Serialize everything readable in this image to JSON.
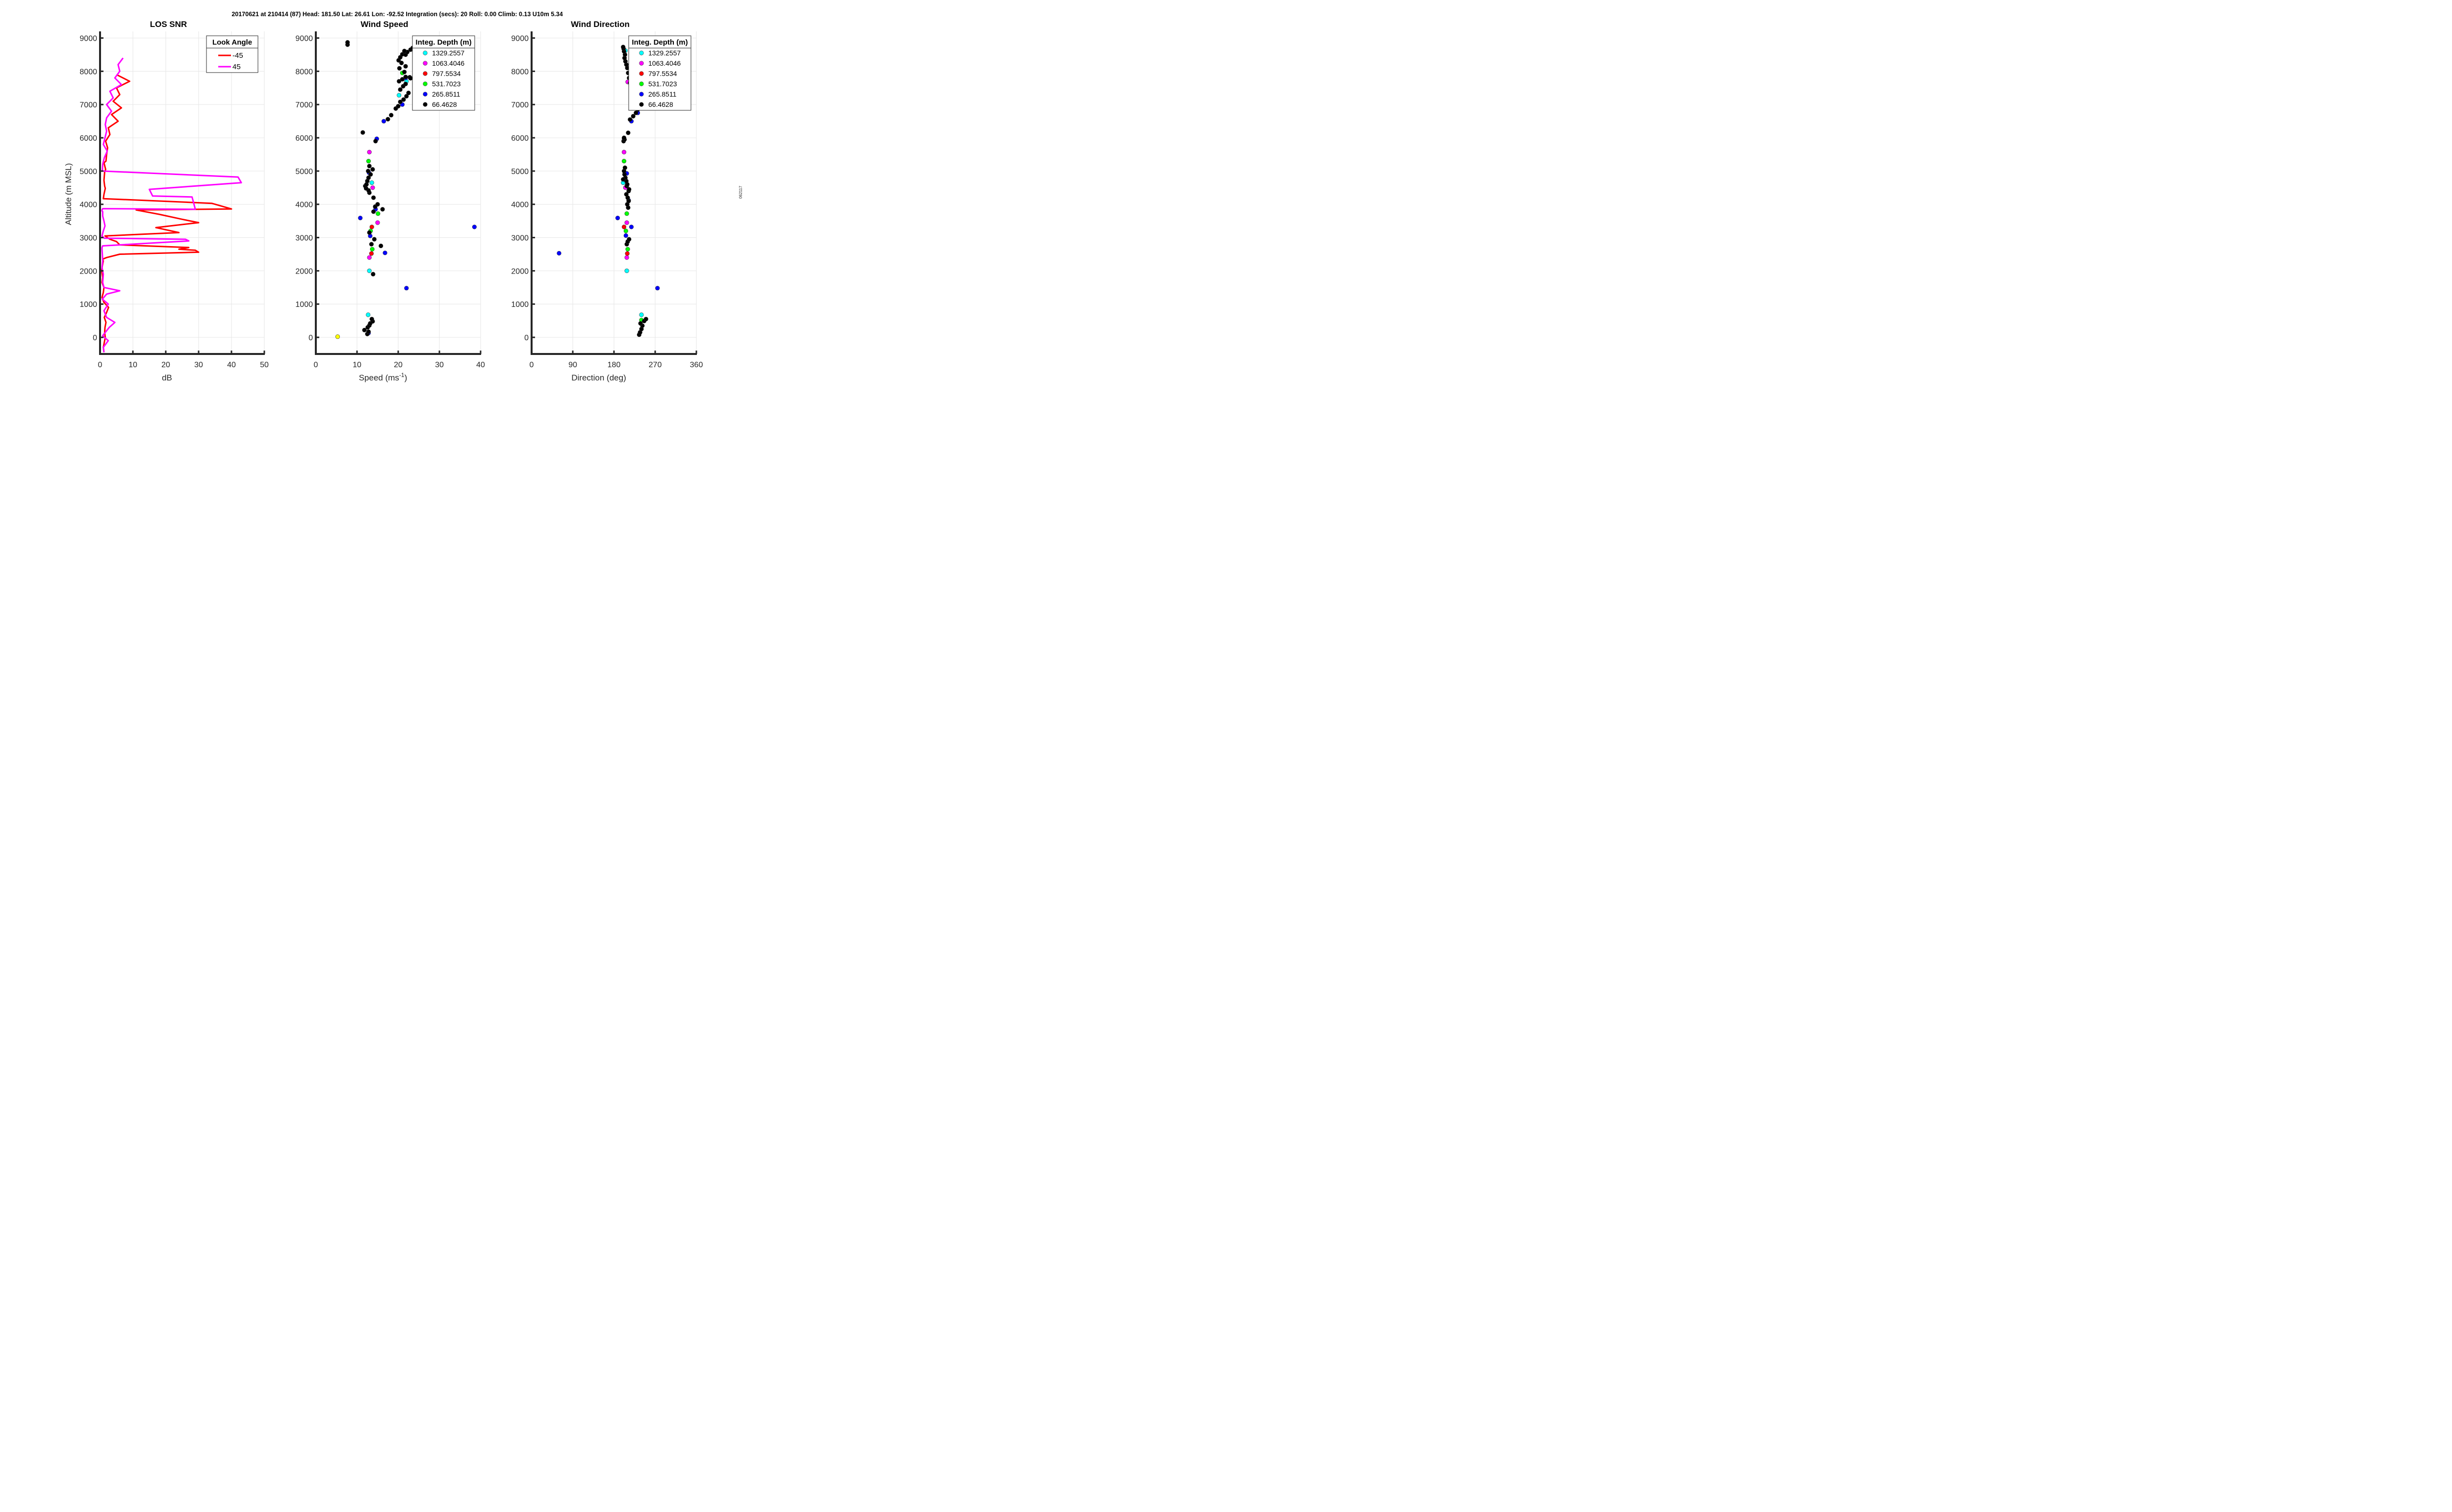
{
  "header": {
    "text": "20170621 at 210414 (87)  Head: 181.50  Lat: 26.61  Lon: -92.52  Integration (secs): 20  Roll: 0.00  Climb: 0.13  U10m 5.34",
    "side_note": "062117"
  },
  "colors": {
    "neg45": "#ff0000",
    "pos45": "#ff00ff",
    "d1329": "#00ffff",
    "d1063": "#ff00ff",
    "d797": "#ff0000",
    "d531": "#00ff00",
    "d265": "#0000ff",
    "d66": "#000000",
    "surface": "#ffff00",
    "axis": "#262626",
    "grid": "#e6e6e6"
  },
  "chart_data": [
    {
      "type": "line",
      "title": "LOS SNR",
      "xlabel": "dB",
      "ylabel": "Altitude (m MSL)",
      "xlim": [
        0,
        50
      ],
      "ylim": [
        -500,
        9200
      ],
      "xticks": [
        "0",
        "10",
        "20",
        "30",
        "40",
        "50"
      ],
      "yticks": [
        "0",
        "1000",
        "2000",
        "3000",
        "4000",
        "5000",
        "6000",
        "7000",
        "8000",
        "9000"
      ],
      "grid": true,
      "legend": {
        "title": "Look Angle",
        "position": "top-right"
      },
      "series": [
        {
          "name": "-45",
          "color_key": "neg45",
          "x": [
            1.2,
            1.0,
            1.3,
            1.6,
            1.4,
            1.5,
            1.8,
            1.3,
            2.0,
            2.6,
            1.2,
            0.6,
            1.0,
            1.2,
            0.6,
            0.8,
            0.5,
            0.7,
            1.0,
            0.8,
            1.0,
            2.0,
            6.0,
            30.0,
            29.0,
            24.0,
            27.0,
            6.0,
            5.0,
            3.0,
            1.5,
            24.0,
            17.0,
            30.0,
            25.0,
            18.0,
            11.0,
            40.0,
            34.0,
            1.0,
            1.2,
            1.6,
            1.4,
            1.2,
            1.4,
            1.7,
            1.2,
            1.8,
            2.0,
            2.3,
            1.7,
            3.0,
            2.5,
            5.5,
            3.5,
            6.5,
            4.0,
            6.0,
            5.0,
            9.0,
            5.0
          ],
          "y": [
            -450,
            -300,
            -150,
            0,
            150,
            300,
            450,
            600,
            750,
            900,
            1050,
            1200,
            1350,
            1500,
            1650,
            1800,
            2000,
            2150,
            2300,
            2330,
            2360,
            2400,
            2500,
            2560,
            2620,
            2650,
            2700,
            2780,
            2880,
            2950,
            3050,
            3150,
            3300,
            3450,
            3550,
            3700,
            3830,
            3860,
            4030,
            4170,
            4300,
            4480,
            4550,
            4720,
            4970,
            5050,
            5250,
            5300,
            5500,
            5700,
            5900,
            6100,
            6300,
            6500,
            6700,
            6900,
            7100,
            7300,
            7500,
            7700,
            7900
          ]
        },
        {
          "name": "45",
          "color_key": "pos45",
          "x": [
            1.2,
            1.0,
            2.5,
            0.8,
            2.8,
            4.5,
            2.0,
            1.2,
            2.5,
            0.7,
            2.0,
            6.0,
            1.2,
            0.8,
            1.0,
            0.6,
            0.8,
            0.7,
            0.6,
            0.6,
            0.8,
            27.0,
            26.0,
            1.3,
            0.6,
            1.0,
            1.5,
            1.2,
            0.8,
            0.8,
            0.6,
            0.6,
            0.8,
            29.0,
            28.0,
            16.0,
            15.0,
            43.0,
            42.0,
            0.7,
            0.8,
            1.3,
            2.2,
            1.0,
            1.5,
            2.0,
            1.6,
            2.0,
            3.5,
            2.0,
            4.0,
            3.0,
            6.5,
            4.5,
            6.0,
            5.5,
            7.0
          ],
          "y": [
            -450,
            -300,
            -100,
            50,
            300,
            450,
            600,
            800,
            1000,
            1150,
            1300,
            1400,
            1500,
            1650,
            1900,
            2100,
            2300,
            2500,
            2650,
            2700,
            2750,
            2900,
            2950,
            2980,
            3050,
            3200,
            3350,
            3500,
            3650,
            3780,
            3800,
            3830,
            3870,
            3850,
            4220,
            4250,
            4450,
            4650,
            4820,
            5000,
            5200,
            5400,
            5600,
            5800,
            6000,
            6200,
            6400,
            6600,
            6800,
            7000,
            7200,
            7400,
            7600,
            7800,
            8000,
            8200,
            8400
          ]
        }
      ]
    },
    {
      "type": "scatter",
      "title": "Wind Speed",
      "xlabel": "Speed (ms",
      "xlabel_superscript": "-1",
      "xlabel_suffix": ")",
      "xlim": [
        0,
        40
      ],
      "ylim": [
        -500,
        9200
      ],
      "xticks": [
        "0",
        "10",
        "20",
        "30",
        "40"
      ],
      "yticks": [
        "0",
        "1000",
        "2000",
        "3000",
        "4000",
        "5000",
        "6000",
        "7000",
        "8000",
        "9000"
      ],
      "grid": true,
      "legend": {
        "title": "Integ. Depth (m)",
        "position": "top-right"
      },
      "series": [
        {
          "name": "1329.2557",
          "color_key": "d1329",
          "x": [
            12.7,
            13.0,
            13.6,
            20.2,
            22.0
          ],
          "y": [
            680,
            2000,
            4650,
            7280,
            7700
          ]
        },
        {
          "name": "1063.4046",
          "color_key": "d1063",
          "x": [
            13.0,
            15.0,
            13.8,
            13.0
          ],
          "y": [
            2400,
            3450,
            4500,
            5570
          ]
        },
        {
          "name": "797.5534",
          "color_key": "d797",
          "x": [
            13.5,
            13.6
          ],
          "y": [
            2520,
            3320
          ]
        },
        {
          "name": "531.7023",
          "color_key": "d531",
          "x": [
            13.7,
            13.3,
            15.1,
            12.8,
            21.0
          ],
          "y": [
            2650,
            3200,
            3720,
            5300,
            7950
          ]
        },
        {
          "name": "265.8511",
          "color_key": "d265",
          "x": [
            12.8,
            22.0,
            16.8,
            13.2,
            38.5,
            10.8,
            14.5,
            12.9,
            14.8,
            16.5,
            21.0,
            21.8
          ],
          "y": [
            130,
            1480,
            2540,
            3050,
            3320,
            3590,
            3850,
            4950,
            5970,
            6500,
            7000,
            7800
          ]
        },
        {
          "name": "66.4628",
          "color_key": "d66",
          "x": [
            12.5,
            12.8,
            11.8,
            12.6,
            13.0,
            13.2,
            13.8,
            13.6,
            13.9,
            15.8,
            13.5,
            14.2,
            13.0,
            14.0,
            14.4,
            15.0,
            16.2,
            14.0,
            13.0,
            12.8,
            12.2,
            12.0,
            12.3,
            12.5,
            12.8,
            13.3,
            12.7,
            13.8,
            13.0,
            14.5,
            11.4,
            17.5,
            18.3,
            19.4,
            20.0,
            20.5,
            21.3,
            22.0,
            22.5,
            20.5,
            21.2,
            21.8,
            20.2,
            21.0,
            21.8,
            22.8,
            23.0,
            21.5,
            20.3,
            21.8,
            20.8,
            20.1,
            20.5,
            21.0,
            21.8,
            22.2,
            21.5,
            23.0,
            23.5,
            7.7,
            7.7
          ],
          "y": [
            100,
            170,
            220,
            300,
            360,
            420,
            480,
            550,
            1900,
            2750,
            2800,
            2950,
            3150,
            3780,
            3930,
            4000,
            3850,
            4200,
            4350,
            4420,
            4480,
            4550,
            4600,
            4700,
            4800,
            4900,
            5000,
            5050,
            5150,
            5900,
            6160,
            6560,
            6680,
            6880,
            6950,
            7080,
            7150,
            7250,
            7350,
            7450,
            7550,
            7620,
            7700,
            7760,
            7830,
            7820,
            7790,
            7980,
            8090,
            8150,
            8250,
            8330,
            8420,
            8510,
            8500,
            8580,
            8610,
            8650,
            8700,
            8800,
            8870
          ]
        },
        {
          "name": "surface",
          "color_key": "surface",
          "x": [
            5.3
          ],
          "y": [
            20
          ]
        }
      ]
    },
    {
      "type": "scatter",
      "title": "Wind Direction",
      "xlabel": "Direction (deg)",
      "xlim": [
        0,
        360
      ],
      "ylim": [
        -500,
        9200
      ],
      "xticks": [
        "0",
        "90",
        "180",
        "270",
        "360"
      ],
      "yticks": [
        "0",
        "1000",
        "2000",
        "3000",
        "4000",
        "5000",
        "6000",
        "7000",
        "8000",
        "9000"
      ],
      "grid": true,
      "legend": {
        "title": "Integ. Depth (m)",
        "position": "top-right"
      },
      "series": [
        {
          "name": "1329.2557",
          "color_key": "d1329",
          "x": [
            240,
            208,
            200,
            205
          ],
          "y": [
            680,
            2000,
            4650,
            8620
          ]
        },
        {
          "name": "1063.4046",
          "color_key": "d1063",
          "x": [
            208,
            208,
            205,
            202,
            210
          ],
          "y": [
            2400,
            3450,
            4500,
            5570,
            7680
          ]
        },
        {
          "name": "797.5534",
          "color_key": "d797",
          "x": [
            209,
            202
          ],
          "y": [
            2520,
            3320
          ]
        },
        {
          "name": "531.7023",
          "color_key": "d531",
          "x": [
            240,
            210,
            206,
            208,
            202
          ],
          "y": [
            520,
            2650,
            3200,
            3720,
            5300
          ]
        },
        {
          "name": "265.8511",
          "color_key": "d265",
          "x": [
            237,
            275,
            60,
            206,
            218,
            188,
            212,
            208,
            202,
            218,
            232,
            236
          ],
          "y": [
            150,
            1480,
            2530,
            3060,
            3320,
            3590,
            4120,
            4930,
            5970,
            6500,
            6750,
            7020
          ]
        },
        {
          "name": "66.4628",
          "color_key": "d66",
          "x": [
            235,
            237,
            240,
            242,
            238,
            246,
            250,
            208,
            210,
            213,
            211,
            209,
            212,
            210,
            207,
            212,
            213,
            208,
            209,
            207,
            205,
            203,
            202,
            204,
            200,
            201,
            203,
            202,
            211,
            215,
            222,
            228,
            232,
            232,
            227,
            224,
            215,
            213,
            211,
            209,
            207,
            205,
            203,
            204,
            202,
            201,
            200
          ],
          "y": [
            80,
            150,
            250,
            350,
            420,
            490,
            550,
            2800,
            2880,
            2950,
            3900,
            4000,
            4100,
            4200,
            4300,
            4400,
            4450,
            4550,
            4600,
            4700,
            4800,
            4900,
            5000,
            5100,
            4750,
            5900,
            5950,
            6000,
            6150,
            6550,
            6650,
            6750,
            6850,
            6970,
            7200,
            7400,
            7650,
            7800,
            7950,
            8100,
            8200,
            8300,
            8400,
            8500,
            8600,
            8680,
            8730
          ]
        }
      ]
    }
  ]
}
